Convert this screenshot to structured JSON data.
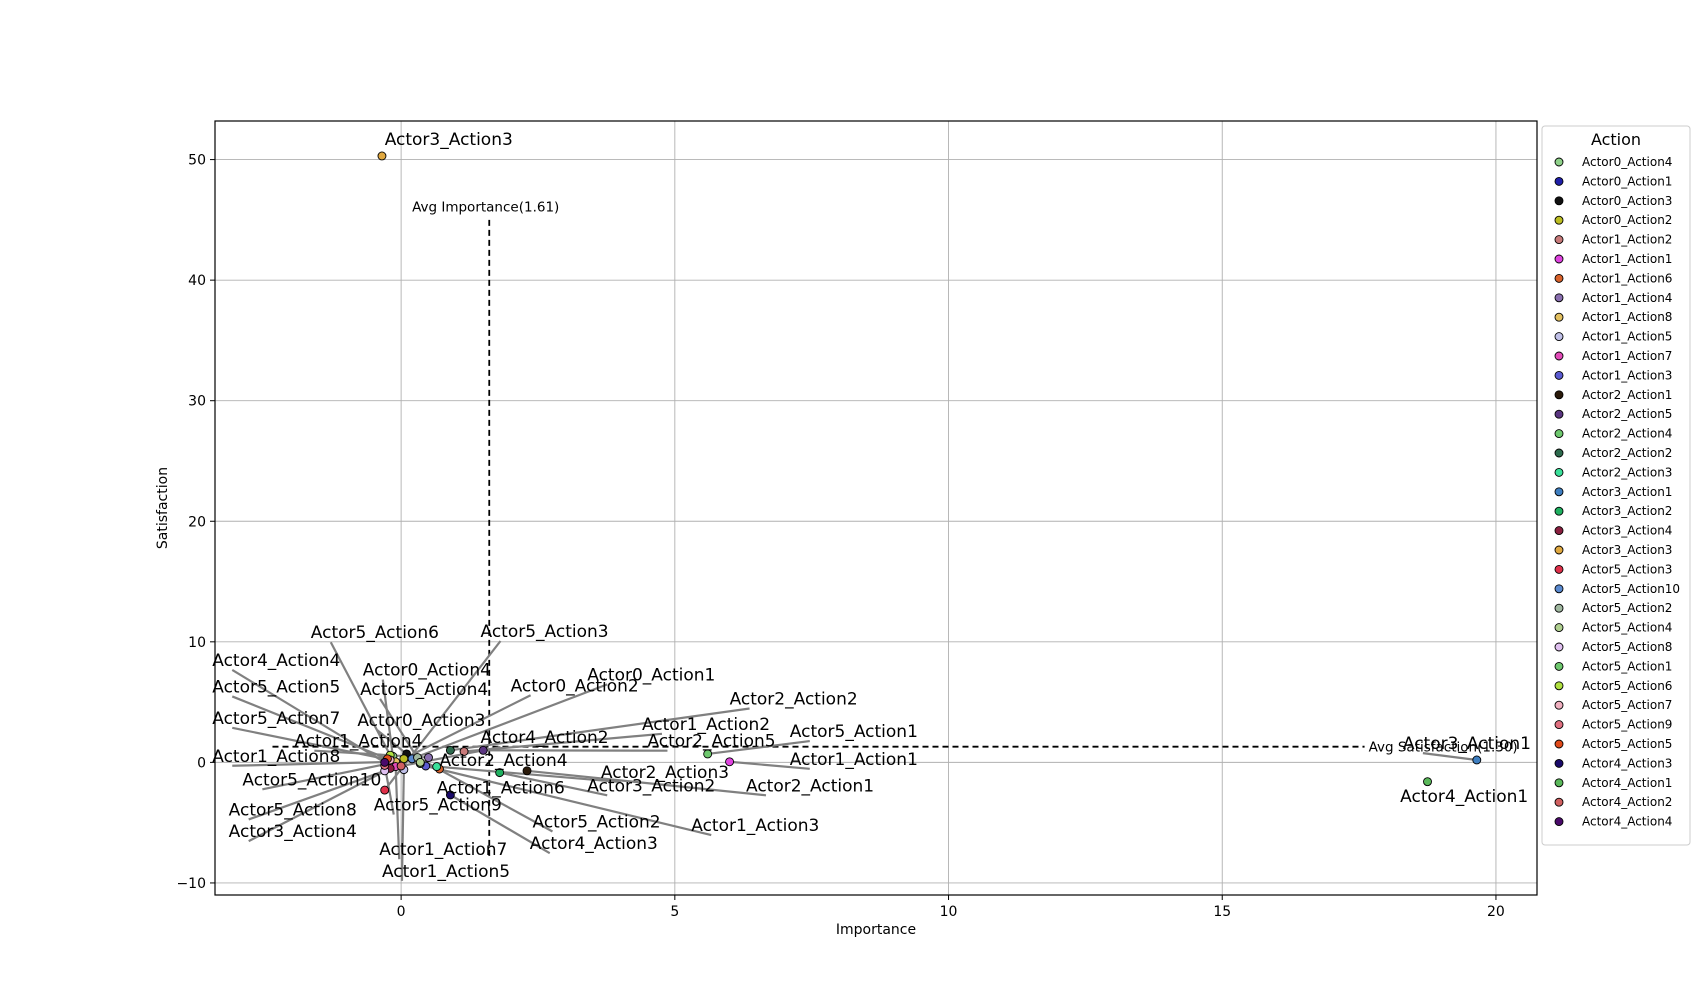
{
  "chart_data": {
    "type": "scatter",
    "xlabel": "Importance",
    "ylabel": "Satisfaction",
    "xlim": [
      -3.4,
      20.75
    ],
    "ylim": [
      -11,
      53.2
    ],
    "xticks": [
      0,
      5,
      10,
      15,
      20
    ],
    "yticks": [
      -10,
      0,
      10,
      20,
      30,
      40,
      50
    ],
    "grid": true,
    "legend": {
      "title": "Action",
      "placement": "outside-right"
    },
    "avg_importance": {
      "value": 1.61,
      "label": "Avg Importance(1.61)"
    },
    "avg_satisfaction": {
      "value": 1.3,
      "label": "Avg Satisfaction(1.30)"
    },
    "points": [
      {
        "name": "Actor0_Action4",
        "x": -0.15,
        "y": 0.5,
        "color": "#8fd18a",
        "lx": -0.7,
        "ly": 7.2
      },
      {
        "name": "Actor0_Action1",
        "x": 0.2,
        "y": 0.3,
        "color": "#1f1fa8",
        "lx": 3.4,
        "ly": 6.8
      },
      {
        "name": "Actor0_Action3",
        "x": 0.1,
        "y": 0.7,
        "color": "#111111",
        "lx": -0.8,
        "ly": 3.0
      },
      {
        "name": "Actor0_Action2",
        "x": 0.05,
        "y": 0.3,
        "color": "#bcbd22",
        "lx": 2.0,
        "ly": 5.9
      },
      {
        "name": "Actor1_Action2",
        "x": 1.15,
        "y": 0.9,
        "color": "#c87a7a",
        "lx": 4.4,
        "ly": 2.7
      },
      {
        "name": "Actor1_Action1",
        "x": 6.0,
        "y": 0.05,
        "color": "#e043e0",
        "lx": 7.1,
        "ly": -0.2
      },
      {
        "name": "Actor1_Action6",
        "x": 0.7,
        "y": -0.55,
        "color": "#d9622b",
        "lx": 0.65,
        "ly": -2.6
      },
      {
        "name": "Actor1_Action4",
        "x": 0.5,
        "y": 0.4,
        "color": "#8a6fb0",
        "lx": -1.95,
        "ly": 1.3
      },
      {
        "name": "Actor1_Action8",
        "x": -0.1,
        "y": 0.05,
        "color": "#e3c060",
        "lx": -3.45,
        "ly": 0.05
      },
      {
        "name": "Actor1_Action5",
        "x": 0.05,
        "y": -0.6,
        "color": "#c0c0e8",
        "lx": -0.35,
        "ly": -9.5
      },
      {
        "name": "Actor1_Action7",
        "x": -0.1,
        "y": -0.35,
        "color": "#e24bb8",
        "lx": -0.4,
        "ly": -7.7
      },
      {
        "name": "Actor1_Action3",
        "x": 0.45,
        "y": -0.3,
        "color": "#5a5ad0",
        "lx": 5.3,
        "ly": -5.7
      },
      {
        "name": "Actor2_Action1",
        "x": 2.3,
        "y": -0.7,
        "color": "#2a1a0a",
        "lx": 6.3,
        "ly": -2.4
      },
      {
        "name": "Actor2_Action5",
        "x": 1.5,
        "y": 1.0,
        "color": "#5a3580",
        "lx": 4.5,
        "ly": 1.3
      },
      {
        "name": "Actor2_Action4",
        "x": 0.35,
        "y": -0.1,
        "color": "#6ec86e",
        "lx": 0.7,
        "ly": -0.3
      },
      {
        "name": "Actor2_Action2",
        "x": 0.9,
        "y": 1.0,
        "color": "#2d6a4d",
        "lx": 6.0,
        "ly": 4.8
      },
      {
        "name": "Actor2_Action3",
        "x": 0.65,
        "y": -0.35,
        "color": "#3ae09a",
        "lx": 3.65,
        "ly": -1.3
      },
      {
        "name": "Actor3_Action1",
        "x": 19.65,
        "y": 0.2,
        "color": "#3e7ec0",
        "lx": 18.3,
        "ly": 1.1
      },
      {
        "name": "Actor3_Action2",
        "x": 1.8,
        "y": -0.85,
        "color": "#1fb060",
        "lx": 3.4,
        "ly": -2.4
      },
      {
        "name": "Actor3_Action4",
        "x": -0.2,
        "y": -0.5,
        "color": "#8a1f3f",
        "lx": -3.15,
        "ly": -6.2
      },
      {
        "name": "Actor3_Action3",
        "x": -0.35,
        "y": 50.3,
        "color": "#e0a840",
        "lx": -0.3,
        "ly": 51.2
      },
      {
        "name": "Actor5_Action3",
        "x": -0.3,
        "y": -2.3,
        "color": "#e0304a",
        "lx": 1.45,
        "ly": 10.4
      },
      {
        "name": "Actor5_Action10",
        "x": 0.2,
        "y": 0.3,
        "color": "#5a8ad0",
        "lx": -2.9,
        "ly": -1.9
      },
      {
        "name": "Actor5_Action2",
        "x": 0.3,
        "y": 0.4,
        "color": "#a0b8a0",
        "lx": 2.4,
        "ly": -5.4
      },
      {
        "name": "Actor5_Action4",
        "x": 0.35,
        "y": 0.0,
        "color": "#b0d090",
        "lx": -0.75,
        "ly": 5.6
      },
      {
        "name": "Actor5_Action8",
        "x": -0.3,
        "y": -0.7,
        "color": "#e0c0f0",
        "lx": -3.15,
        "ly": -4.4
      },
      {
        "name": "Actor5_Action1",
        "x": 5.6,
        "y": 0.7,
        "color": "#6ec86e",
        "lx": 7.1,
        "ly": 2.1
      },
      {
        "name": "Actor5_Action6",
        "x": -0.2,
        "y": 0.6,
        "color": "#b0e040",
        "lx": -1.65,
        "ly": 10.3
      },
      {
        "name": "Actor5_Action7",
        "x": -0.2,
        "y": 0.2,
        "color": "#f0b0c0",
        "lx": -3.45,
        "ly": 3.2
      },
      {
        "name": "Actor5_Action9",
        "x": -0.3,
        "y": -0.25,
        "color": "#e07080",
        "lx": -0.5,
        "ly": -4.0
      },
      {
        "name": "Actor5_Action5",
        "x": -0.25,
        "y": 0.3,
        "color": "#e04a1a",
        "lx": -3.45,
        "ly": 5.8
      },
      {
        "name": "Actor4_Action3",
        "x": 0.9,
        "y": -2.7,
        "color": "#1a0a6a",
        "lx": 2.35,
        "ly": -7.2
      },
      {
        "name": "Actor4_Action1",
        "x": 18.75,
        "y": -1.6,
        "color": "#5ab85a",
        "lx": 18.25,
        "ly": -3.3
      },
      {
        "name": "Actor4_Action2",
        "x": 0.0,
        "y": -0.3,
        "color": "#d06060",
        "lx": 1.45,
        "ly": 1.6
      },
      {
        "name": "Actor4_Action4",
        "x": -0.3,
        "y": 0.0,
        "color": "#4a0a6a",
        "lx": -3.45,
        "ly": 8.0
      }
    ]
  }
}
